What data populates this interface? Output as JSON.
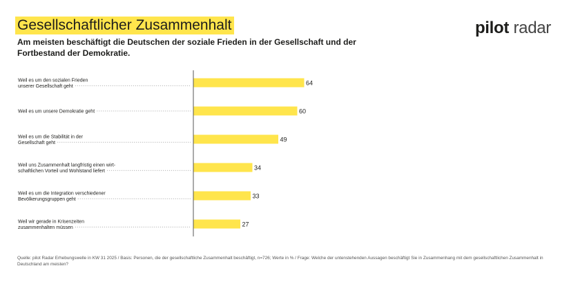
{
  "header": {
    "title": "Gesellschaftlicher Zusammenhalt",
    "subtitle": "Am meisten beschäftigt die Deutschen der soziale Frieden in der Gesellschaft und der Fortbestand der Demokratie."
  },
  "logo": {
    "part1": "pilot",
    "part2": " radar"
  },
  "colors": {
    "bar": "#ffe54c",
    "highlight": "#ffe54c",
    "axis": "#555555",
    "leader": "#9a9a9a"
  },
  "chart_data": {
    "type": "bar",
    "orientation": "horizontal",
    "categories": [
      [
        "Weil es um den sozialen Frieden",
        "unserer Gesellschaft geht"
      ],
      [
        "Weil es um unsere Demokratie geht"
      ],
      [
        "Weil es um die Stabilität in der",
        "Gesellschaft geht"
      ],
      [
        "Weil uns Zusammenhalt langfristig einen wirt-",
        "schaftlichen Vorteil und Wohlstand liefert"
      ],
      [
        "Weil es um die Integration verschiedener",
        "Bevölkerungsgruppen geht"
      ],
      [
        "Weil wir gerade in Krisenzeiten",
        "zusammenhalten müssen"
      ]
    ],
    "values": [
      64,
      60,
      49,
      34,
      33,
      27
    ],
    "xlim": [
      0,
      100
    ],
    "unit": "%"
  },
  "footer": {
    "source": "Quelle: pilot Radar Erhebungswelle in KW 31 2025 / Basis: Personen, die der gesellschaftliche Zusammenhalt beschäftigt, n=726; Werte in % / Frage: Welche der untenstehenden Aussagen beschäftigt Sie in Zusammenhang mit dem gesellschaftlichen Zusammenhalt in Deutschland am meisten?"
  }
}
